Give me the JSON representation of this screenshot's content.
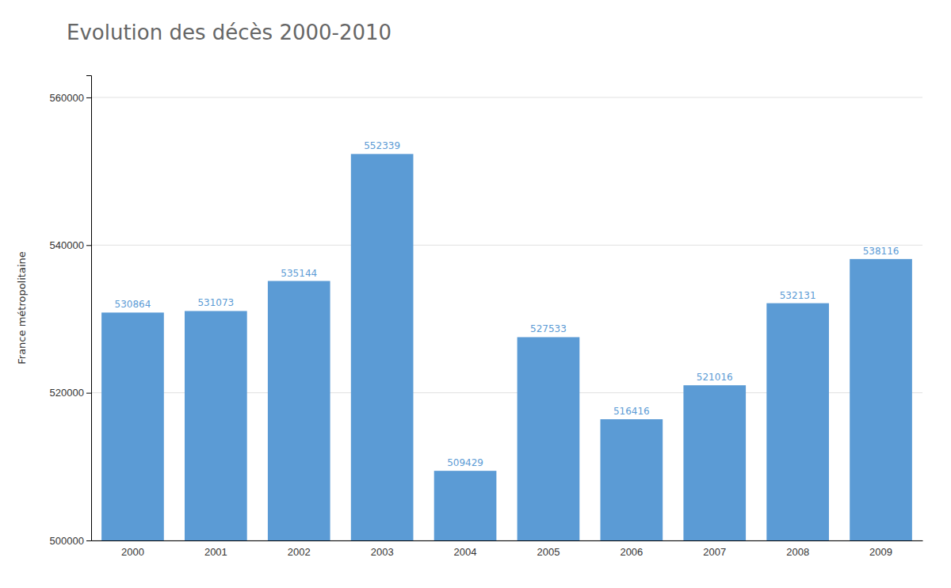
{
  "chart_data": {
    "type": "bar",
    "title": "Evolution des décès 2000-2010",
    "ylabel": "France métropolitaine",
    "categories": [
      "2000",
      "2001",
      "2002",
      "2003",
      "2004",
      "2005",
      "2006",
      "2007",
      "2008",
      "2009"
    ],
    "values": [
      530864,
      531073,
      535144,
      552339,
      509429,
      527533,
      516416,
      521016,
      532131,
      538116
    ],
    "color": "#5B9BD5",
    "ylim": [
      500000,
      563000
    ],
    "yticks": [
      500000,
      520000,
      540000,
      560000
    ],
    "grid": true,
    "data_labels": true
  }
}
